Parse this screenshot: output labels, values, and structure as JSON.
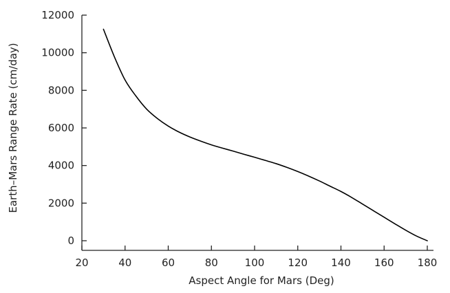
{
  "chart_data": {
    "type": "line",
    "title": "",
    "xlabel": "Aspect Angle for Mars (Deg)",
    "ylabel": "Earth–Mars Range Rate (cm/day)",
    "xlim": [
      20,
      180
    ],
    "ylim": [
      -300,
      12000
    ],
    "x_ticks": [
      20,
      40,
      60,
      80,
      100,
      120,
      140,
      160,
      180
    ],
    "y_ticks": [
      0,
      2000,
      4000,
      6000,
      8000,
      10000,
      12000
    ],
    "x_tick_labels": [
      "20",
      "40",
      "60",
      "80",
      "100",
      "120",
      "140",
      "160",
      "180"
    ],
    "y_tick_labels": [
      "0",
      "2000",
      "4000",
      "6000",
      "8000",
      "10000",
      "12000"
    ],
    "grid": false,
    "series": [
      {
        "color": "#000000",
        "x": [
          30,
          35,
          40,
          45,
          50,
          55,
          60,
          65,
          70,
          75,
          80,
          85,
          90,
          95,
          100,
          105,
          110,
          115,
          120,
          125,
          130,
          135,
          140,
          145,
          150,
          155,
          160,
          165,
          170,
          175,
          180
        ],
        "y": [
          11250,
          9800,
          8550,
          7700,
          7000,
          6500,
          6100,
          5780,
          5520,
          5300,
          5100,
          4930,
          4770,
          4600,
          4440,
          4270,
          4100,
          3900,
          3680,
          3440,
          3180,
          2900,
          2620,
          2300,
          1950,
          1600,
          1250,
          900,
          560,
          250,
          0
        ]
      }
    ]
  }
}
